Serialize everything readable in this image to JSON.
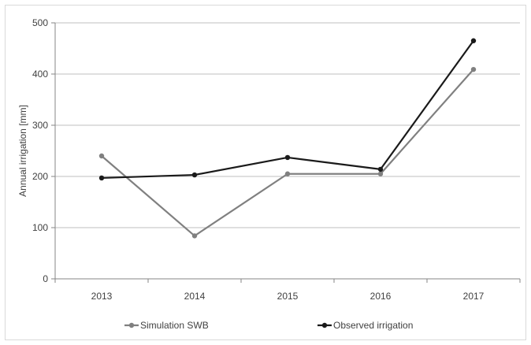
{
  "chart_data": {
    "type": "line",
    "title": "",
    "xlabel": "",
    "ylabel": "Annual irrigation [mm]",
    "categories": [
      "2013",
      "2014",
      "2015",
      "2016",
      "2017"
    ],
    "ylim": [
      0,
      500
    ],
    "yticks": [
      0,
      100,
      200,
      300,
      400,
      500
    ],
    "grid": true,
    "legend_position": "bottom",
    "series": [
      {
        "name": "Simulation SWB",
        "color": "#808080",
        "values": [
          240,
          84,
          205,
          205,
          409
        ]
      },
      {
        "name": "Observed irrigation",
        "color": "#1a1a1a",
        "values": [
          197,
          203,
          237,
          214,
          465
        ]
      }
    ]
  }
}
